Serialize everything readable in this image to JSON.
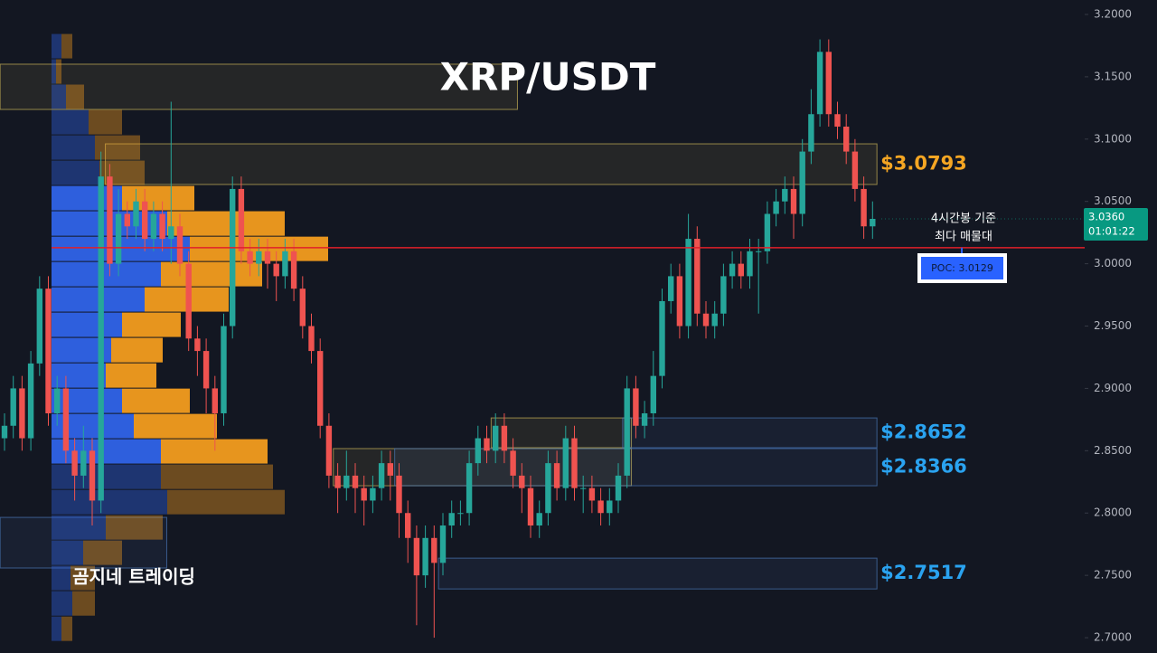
{
  "chart_data": {
    "type": "candlestick",
    "title": "XRP/USDT",
    "watermark": "곰지네 트레이딩",
    "up_color": "#26a69a",
    "down_color": "#ef5350",
    "ylim": [
      2.6877,
      3.2116
    ],
    "yticks": [
      {
        "value": 2.7,
        "label": "2.7000"
      },
      {
        "value": 2.75,
        "label": "2.7500"
      },
      {
        "value": 2.8,
        "label": "2.8000"
      },
      {
        "value": 2.85,
        "label": "2.8500"
      },
      {
        "value": 2.9,
        "label": "2.9000"
      },
      {
        "value": 2.95,
        "label": "2.9500"
      },
      {
        "value": 3.0,
        "label": "3.0000"
      },
      {
        "value": 3.05,
        "label": "3.0500"
      },
      {
        "value": 3.1,
        "label": "3.1000"
      },
      {
        "value": 3.15,
        "label": "3.1500"
      },
      {
        "value": 3.2,
        "label": "3.2000"
      }
    ],
    "open": [
      2.86,
      2.87,
      2.9,
      2.86,
      2.92,
      2.98,
      2.88,
      2.9,
      2.85,
      2.83,
      2.85,
      2.81,
      3.07,
      3.0,
      3.04,
      3.03,
      3.05,
      3.02,
      3.04,
      3.02,
      3.03,
      3.0,
      2.94,
      2.93,
      2.9,
      2.88,
      2.95,
      3.06,
      3.01,
      3.0,
      3.01,
      3.0,
      2.99,
      3.01,
      2.98,
      2.95,
      2.93,
      2.87,
      2.83,
      2.82,
      2.83,
      2.82,
      2.81,
      2.82,
      2.84,
      2.83,
      2.8,
      2.78,
      2.75,
      2.78,
      2.76,
      2.79,
      2.8,
      2.8,
      2.84,
      2.86,
      2.85,
      2.87,
      2.85,
      2.83,
      2.82,
      2.79,
      2.8,
      2.84,
      2.82,
      2.86,
      2.82,
      2.82,
      2.81,
      2.8,
      2.81,
      2.83,
      2.9,
      2.87,
      2.88,
      2.91,
      2.97,
      2.99,
      2.95,
      3.02,
      2.96,
      2.95,
      2.96,
      2.99,
      3.0,
      2.99,
      3.01,
      3.01,
      3.04,
      3.05,
      3.06,
      3.04,
      3.09,
      3.12,
      3.17,
      3.12,
      3.11,
      3.09,
      3.06,
      3.03
    ],
    "high": [
      2.88,
      2.91,
      2.91,
      2.93,
      2.99,
      2.99,
      2.91,
      2.91,
      2.86,
      2.87,
      2.86,
      3.09,
      3.08,
      3.06,
      3.05,
      3.06,
      3.06,
      3.05,
      3.05,
      3.13,
      3.04,
      3.01,
      2.95,
      2.94,
      2.91,
      2.96,
      3.07,
      3.07,
      3.02,
      3.02,
      3.02,
      3.01,
      3.02,
      3.02,
      2.99,
      2.96,
      2.94,
      2.88,
      2.84,
      2.85,
      2.84,
      2.83,
      2.83,
      2.85,
      2.85,
      2.84,
      2.81,
      2.79,
      2.79,
      2.79,
      2.8,
      2.81,
      2.81,
      2.85,
      2.87,
      2.87,
      2.88,
      2.88,
      2.86,
      2.84,
      2.83,
      2.81,
      2.85,
      2.85,
      2.87,
      2.87,
      2.83,
      2.83,
      2.82,
      2.82,
      2.84,
      2.91,
      2.91,
      2.89,
      2.93,
      2.98,
      3.0,
      3.0,
      3.04,
      3.03,
      2.97,
      2.97,
      3.0,
      3.01,
      3.01,
      3.02,
      3.02,
      3.05,
      3.06,
      3.07,
      3.07,
      3.1,
      3.14,
      3.18,
      3.18,
      3.13,
      3.12,
      3.1,
      3.07,
      3.05
    ],
    "low": [
      2.85,
      2.86,
      2.85,
      2.85,
      2.91,
      2.87,
      2.87,
      2.84,
      2.81,
      2.82,
      2.79,
      2.8,
      2.99,
      2.99,
      3.02,
      3.02,
      3.01,
      3.01,
      3.01,
      3.0,
      2.99,
      2.93,
      2.91,
      2.88,
      2.85,
      2.87,
      2.94,
      3.0,
      2.99,
      2.99,
      2.98,
      2.97,
      2.98,
      2.97,
      2.94,
      2.92,
      2.86,
      2.82,
      2.8,
      2.81,
      2.8,
      2.79,
      2.8,
      2.81,
      2.81,
      2.78,
      2.76,
      2.71,
      2.74,
      2.7,
      2.75,
      2.78,
      2.79,
      2.79,
      2.83,
      2.84,
      2.84,
      2.84,
      2.82,
      2.8,
      2.78,
      2.78,
      2.79,
      2.81,
      2.81,
      2.81,
      2.8,
      2.8,
      2.79,
      2.79,
      2.8,
      2.82,
      2.86,
      2.86,
      2.87,
      2.9,
      2.96,
      2.94,
      2.94,
      2.95,
      2.94,
      2.94,
      2.95,
      2.98,
      2.98,
      2.98,
      2.96,
      3.0,
      3.03,
      3.04,
      3.02,
      3.03,
      3.08,
      3.11,
      3.11,
      3.1,
      3.08,
      3.05,
      3.02,
      3.02
    ],
    "close": [
      2.87,
      2.9,
      2.86,
      2.92,
      2.98,
      2.88,
      2.9,
      2.85,
      2.83,
      2.85,
      2.81,
      3.07,
      3.0,
      3.04,
      3.03,
      3.05,
      3.02,
      3.04,
      3.02,
      3.03,
      3.0,
      2.94,
      2.93,
      2.9,
      2.88,
      2.95,
      3.06,
      3.01,
      3.0,
      3.01,
      3.0,
      2.99,
      3.01,
      2.98,
      2.95,
      2.93,
      2.87,
      2.83,
      2.82,
      2.83,
      2.82,
      2.81,
      2.82,
      2.84,
      2.83,
      2.8,
      2.78,
      2.75,
      2.78,
      2.76,
      2.79,
      2.8,
      2.8,
      2.84,
      2.86,
      2.85,
      2.87,
      2.85,
      2.83,
      2.82,
      2.79,
      2.8,
      2.84,
      2.82,
      2.86,
      2.82,
      2.82,
      2.81,
      2.8,
      2.81,
      2.83,
      2.9,
      2.87,
      2.88,
      2.91,
      2.97,
      2.99,
      2.95,
      3.02,
      2.96,
      2.95,
      2.96,
      2.99,
      3.0,
      2.99,
      3.01,
      3.01,
      3.04,
      3.05,
      3.06,
      3.04,
      3.09,
      3.12,
      3.17,
      3.12,
      3.11,
      3.09,
      3.06,
      3.03,
      3.036
    ],
    "volume_profile": {
      "bins": [
        3.1847,
        3.1644,
        3.1441,
        3.1238,
        3.1034,
        3.0831,
        3.0628,
        3.0425,
        3.0221,
        3.0018,
        2.9815,
        2.9612,
        2.9409,
        2.9205,
        2.9002,
        2.8799,
        2.8596,
        2.8393,
        2.8189,
        2.7986,
        2.7783,
        2.758,
        2.7377,
        2.7173,
        2.697
      ],
      "buy": [
        11,
        5,
        16,
        41,
        48,
        53,
        78,
        128,
        153,
        121,
        103,
        78,
        66,
        60,
        78,
        91,
        121,
        121,
        128,
        60,
        35,
        21,
        23,
        11
      ],
      "sell": [
        12,
        6,
        20,
        37,
        50,
        50,
        80,
        130,
        153,
        112,
        93,
        65,
        57,
        56,
        75,
        92,
        118,
        124,
        130,
        63,
        43,
        27,
        25,
        12
      ],
      "buy_color": "#2f63e8",
      "sell_color": "#f29c1f",
      "value_area": [
        2.8393,
        3.0628
      ]
    },
    "zones": [
      {
        "top": 3.1601,
        "bottom": 3.1238,
        "from": 0,
        "to": 58,
        "color": "#c9b458"
      },
      {
        "top": 3.0962,
        "bottom": 3.0636,
        "from": 12,
        "to": 99,
        "color": "#c9b458",
        "label": "$3.0793",
        "label_color": "#f5a623"
      },
      {
        "top": 2.8763,
        "bottom": 2.8524,
        "from": 56,
        "to": 71,
        "color": "#c9b458"
      },
      {
        "top": 2.8517,
        "bottom": 2.8219,
        "from": 38,
        "to": 71,
        "color": "#c9b458"
      },
      {
        "top": 2.8763,
        "bottom": 2.8524,
        "from": 71,
        "to": 99,
        "color": "#4a78b8",
        "label": "$2.8652",
        "label_color": "#2aa3f0"
      },
      {
        "top": 2.8517,
        "bottom": 2.8219,
        "from": 45,
        "to": 99,
        "color": "#4a78b8",
        "label": "$2.8366",
        "label_color": "#2aa3f0"
      },
      {
        "top": 2.7638,
        "bottom": 2.7391,
        "from": 50,
        "to": 99,
        "color": "#4a78b8",
        "label": "$2.7517",
        "label_color": "#2aa3f0"
      },
      {
        "top": 2.7965,
        "bottom": 2.7559,
        "from": 0,
        "to": 18,
        "color": "#4a78b8"
      }
    ],
    "poc": {
      "value": 3.0129,
      "label": "POC: 3.0129",
      "color": "#e0202a"
    },
    "poc_note": [
      "4시간봉 기준",
      "최다 매물대"
    ],
    "last_price": {
      "value": 3.036,
      "label": "3.0360"
    },
    "countdown": "01:01:22"
  }
}
